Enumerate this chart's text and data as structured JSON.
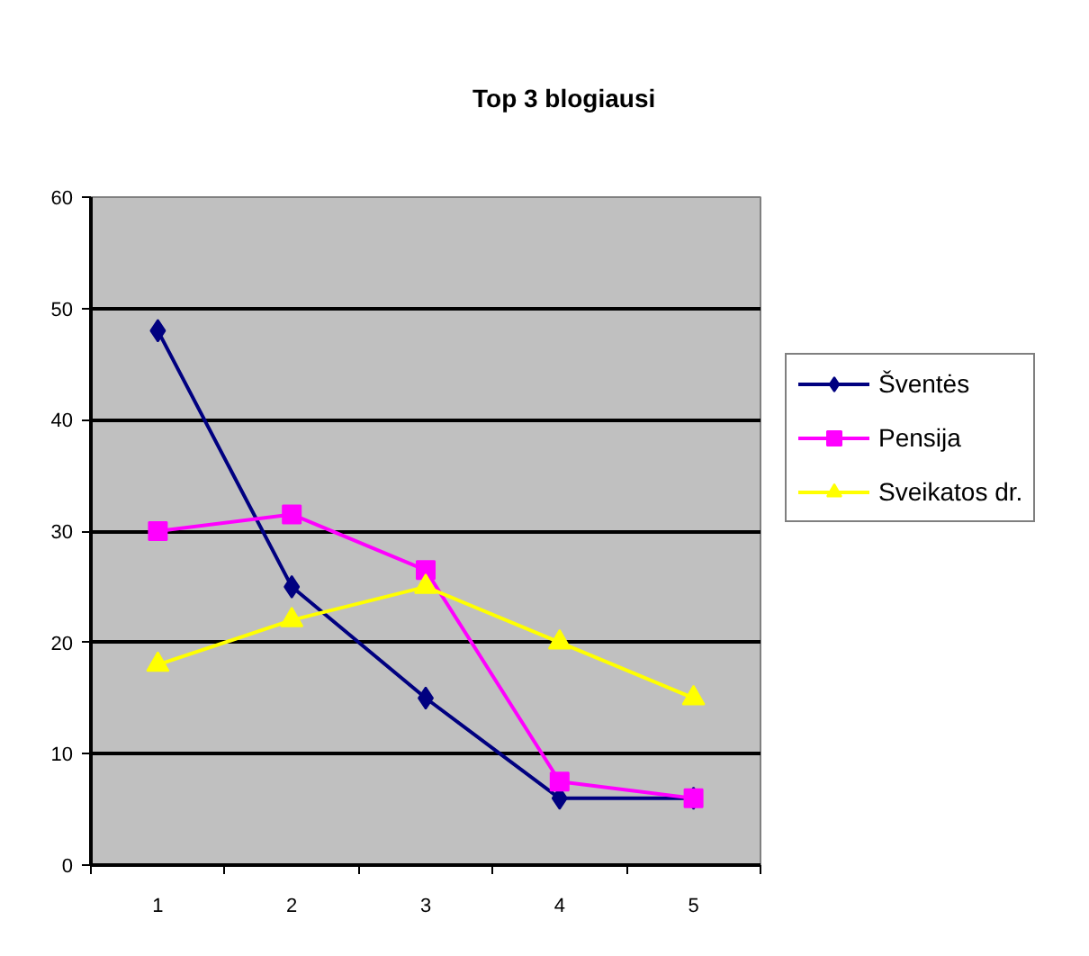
{
  "chart_data": {
    "type": "line",
    "title": "Top 3 blogiausi",
    "categories": [
      "1",
      "2",
      "3",
      "4",
      "5"
    ],
    "series": [
      {
        "name": "Šventės",
        "color": "#000080",
        "marker": "diamond",
        "values": [
          48,
          25,
          15,
          6,
          6
        ]
      },
      {
        "name": "Pensija",
        "color": "#ff00ff",
        "marker": "square",
        "values": [
          30,
          31.5,
          26.5,
          7.5,
          6
        ]
      },
      {
        "name": "Sveikatos dr.",
        "color": "#ffff00",
        "marker": "triangle",
        "values": [
          18,
          22,
          25,
          20,
          15
        ]
      }
    ],
    "ylim": [
      0,
      60
    ],
    "yticks": [
      0,
      10,
      20,
      30,
      40,
      50,
      60
    ],
    "grid": "y",
    "legend": "right",
    "line_style": "solid"
  }
}
